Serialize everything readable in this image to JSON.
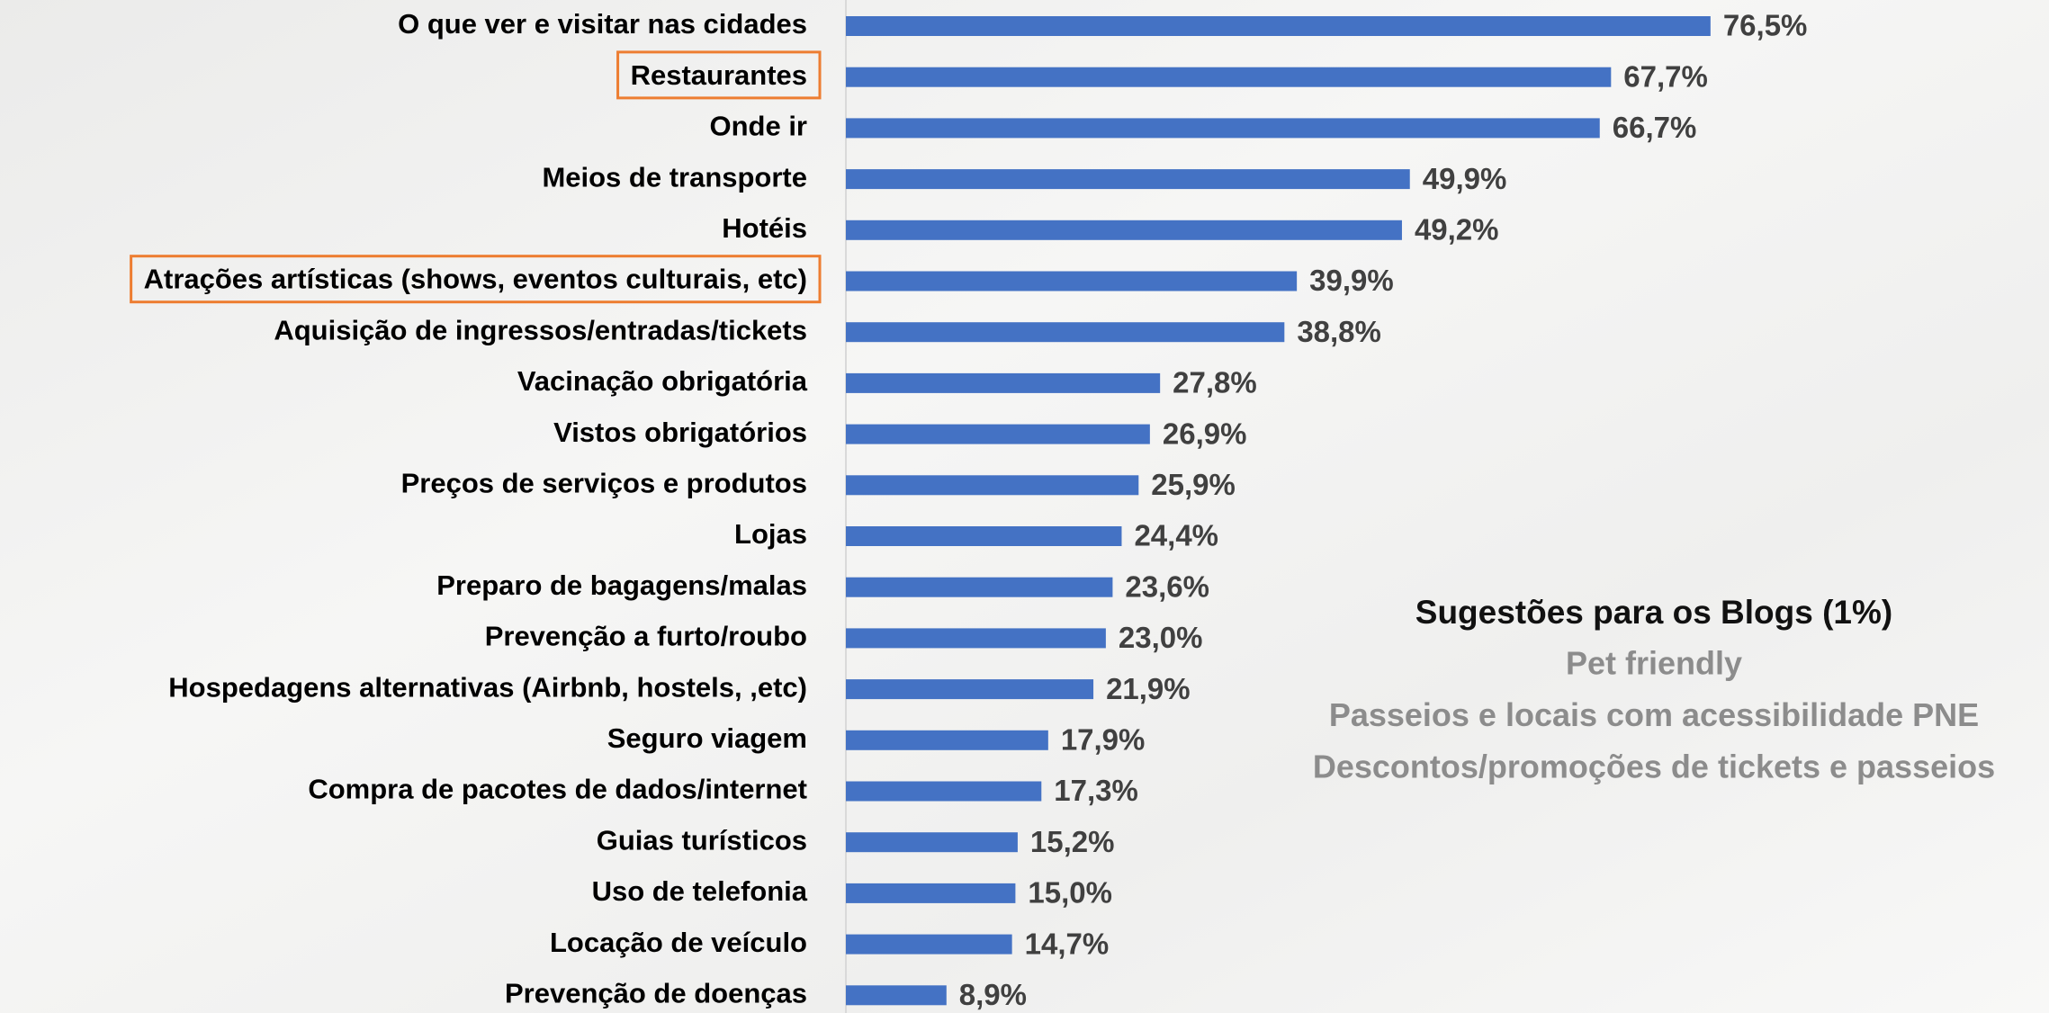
{
  "chart_data": {
    "type": "bar",
    "orientation": "horizontal",
    "categories": [
      "O que ver e visitar nas cidades",
      "Restaurantes",
      "Onde ir",
      "Meios  de transporte",
      "Hotéis",
      "Atrações artísticas (shows, eventos culturais, etc)",
      "Aquisição de ingressos/entradas/tickets",
      "Vacinação obrigatória",
      "Vistos obrigatórios",
      "Preços de serviços e produtos",
      "Lojas",
      "Preparo de bagagens/malas",
      "Prevenção a furto/roubo",
      "Hospedagens alternativas (Airbnb, hostels, ,etc)",
      "Seguro viagem",
      "Compra de pacotes de dados/internet",
      "Guias turísticos",
      "Uso de telefonia",
      "Locação de veículo",
      "Prevenção de doenças"
    ],
    "values": [
      76.5,
      67.7,
      66.7,
      49.9,
      49.2,
      39.9,
      38.8,
      27.8,
      26.9,
      25.9,
      24.4,
      23.6,
      23.0,
      21.9,
      17.9,
      17.3,
      15.2,
      15.0,
      14.7,
      8.9
    ],
    "value_labels": [
      "76,5%",
      "67,7%",
      "66,7%",
      "49,9%",
      "49,2%",
      "39,9%",
      "38,8%",
      "27,8%",
      "26,9%",
      "25,9%",
      "24,4%",
      "23,6%",
      "23,0%",
      "21,9%",
      "17,9%",
      "17,3%",
      "15,2%",
      "15,0%",
      "14,7%",
      "8,9%"
    ],
    "color": "#4472c4",
    "highlighted": [
      1,
      5
    ],
    "highlight_color": "#ed7d31",
    "annotation": {
      "title": "Sugestões para os Blogs (1%)",
      "lines": [
        "Pet friendly",
        "Passeios e locais com acessibilidade PNE",
        "Descontos/promoções de tickets e passeios"
      ]
    }
  }
}
